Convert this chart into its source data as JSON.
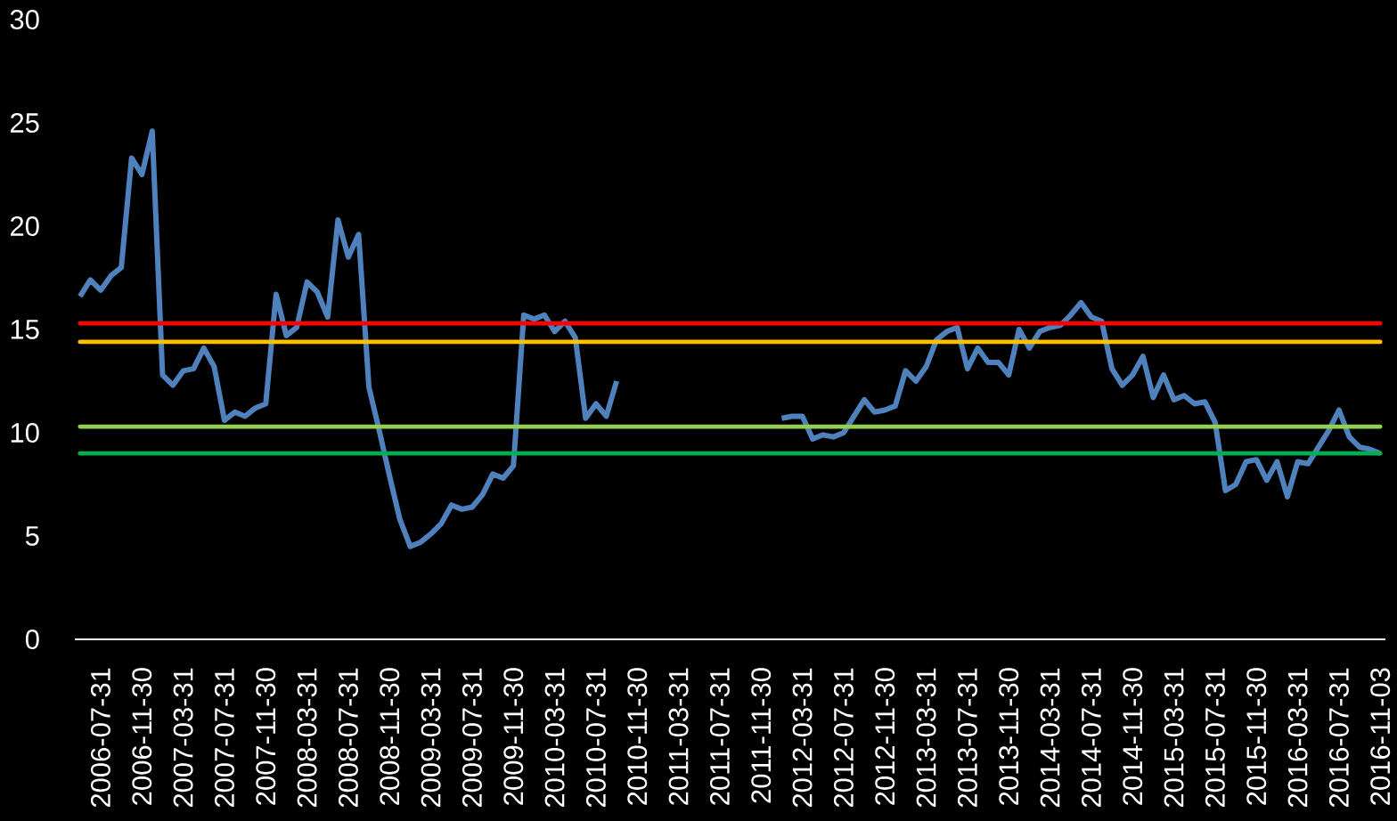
{
  "chart_data": {
    "type": "line",
    "categories": [
      null,
      null,
      "2006-07-31",
      null,
      null,
      null,
      "2006-11-30",
      null,
      null,
      null,
      "2007-03-31",
      null,
      null,
      null,
      "2007-07-31",
      null,
      null,
      null,
      "2007-11-30",
      null,
      null,
      null,
      "2008-03-31",
      null,
      null,
      null,
      "2008-07-31",
      null,
      null,
      null,
      "2008-11-30",
      null,
      null,
      null,
      "2009-03-31",
      null,
      null,
      null,
      "2009-07-31",
      null,
      null,
      null,
      "2009-11-30",
      null,
      null,
      null,
      "2010-03-31",
      null,
      null,
      null,
      "2010-07-31",
      null,
      null,
      null,
      "2010-11-30",
      null,
      null,
      null,
      "2011-03-31",
      null,
      null,
      null,
      "2011-07-31",
      null,
      null,
      null,
      "2011-11-30",
      null,
      null,
      null,
      "2012-03-31",
      null,
      null,
      null,
      "2012-07-31",
      null,
      null,
      null,
      "2012-11-30",
      null,
      null,
      null,
      "2013-03-31",
      null,
      null,
      null,
      "2013-07-31",
      null,
      null,
      null,
      "2013-11-30",
      null,
      null,
      null,
      "2014-03-31",
      null,
      null,
      null,
      "2014-07-31",
      null,
      null,
      null,
      "2014-11-30",
      null,
      null,
      null,
      "2015-03-31",
      null,
      null,
      null,
      "2015-07-31",
      null,
      null,
      null,
      "2015-11-30",
      null,
      null,
      null,
      "2016-03-31",
      null,
      null,
      null,
      "2016-07-31",
      null,
      null,
      null,
      "2016-11-03"
    ],
    "series": [
      {
        "color": "#4f81bd",
        "values": [
          16.6,
          17.4,
          16.9,
          17.6,
          18.0,
          23.3,
          22.5,
          24.6,
          12.8,
          12.3,
          13.0,
          13.1,
          14.1,
          13.2,
          10.6,
          11.0,
          10.8,
          11.2,
          11.4,
          16.7,
          14.7,
          15.1,
          17.3,
          16.8,
          15.6,
          20.3,
          18.5,
          19.6,
          12.2,
          10.1,
          7.9,
          5.8,
          4.5,
          4.7,
          5.1,
          5.6,
          6.5,
          6.3,
          6.4,
          7.0,
          8.0,
          7.8,
          8.4,
          15.7,
          15.5,
          15.7,
          14.9,
          15.4,
          14.6,
          10.7,
          11.4,
          10.8,
          12.5,
          null,
          null,
          null,
          null,
          null,
          null,
          null,
          null,
          null,
          null,
          null,
          null,
          null,
          null,
          null,
          10.7,
          10.8,
          10.8,
          9.7,
          9.9,
          9.8,
          10.0,
          10.8,
          11.6,
          11.0,
          11.1,
          11.3,
          13.0,
          12.5,
          13.2,
          14.5,
          14.9,
          15.1,
          13.1,
          14.1,
          13.4,
          13.4,
          12.8,
          15.0,
          14.1,
          14.9,
          15.1,
          15.2,
          15.7,
          16.3,
          15.6,
          15.4,
          13.1,
          12.3,
          12.8,
          13.7,
          11.7,
          12.8,
          11.6,
          11.8,
          11.4,
          11.5,
          10.5,
          7.2,
          7.5,
          8.6,
          8.7,
          7.7,
          8.6,
          6.9,
          8.6,
          8.5,
          9.3,
          10.1,
          11.1,
          9.8,
          9.3,
          9.2,
          9.0
        ]
      }
    ],
    "ylim": [
      0,
      30
    ],
    "yticks": [
      0,
      5,
      10,
      15,
      20,
      25,
      30
    ],
    "ref_lines": [
      {
        "axis": "y",
        "value": 15.3,
        "color": "#ff0000"
      },
      {
        "axis": "y",
        "value": 14.4,
        "color": "#ffc000"
      },
      {
        "axis": "y",
        "value": 10.3,
        "color": "#92d050"
      },
      {
        "axis": "y",
        "value": 9.0,
        "color": "#00b050"
      }
    ]
  }
}
